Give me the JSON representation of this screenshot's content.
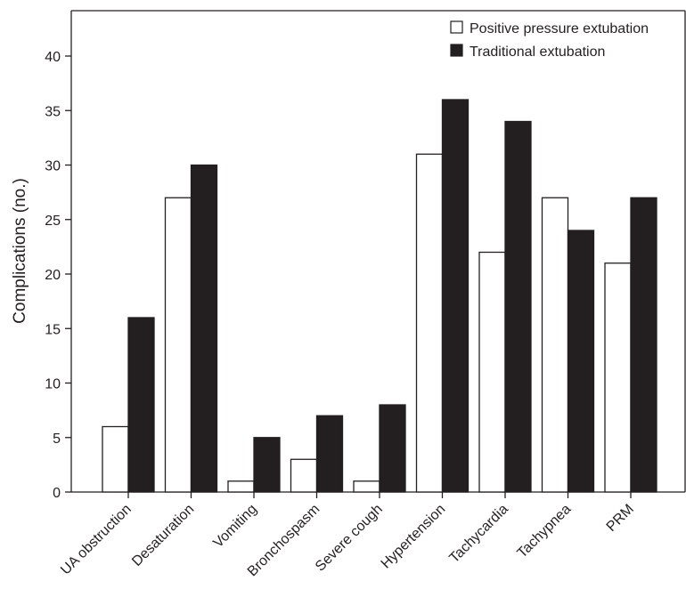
{
  "chart_data": {
    "type": "bar",
    "title": "",
    "xlabel": "",
    "ylabel": "Complications (no.)",
    "ylim": [
      0,
      45
    ],
    "yticks": [
      0,
      5,
      10,
      15,
      20,
      25,
      30,
      35,
      40
    ],
    "grid": false,
    "legend_position": "top-right",
    "categories": [
      "UA obstruction",
      "Desaturation",
      "Vomiting",
      "Bronchospasm",
      "Severe cough",
      "Hypertension",
      "Tachycardia",
      "Tachypnea",
      "PRM"
    ],
    "series": [
      {
        "name": "Positive pressure extubation",
        "color": "#ffffff",
        "values": [
          6,
          27,
          1,
          3,
          1,
          31,
          22,
          27,
          21
        ]
      },
      {
        "name": "Traditional extubation",
        "color": "#231f20",
        "values": [
          16,
          30,
          5,
          7,
          8,
          36,
          34,
          24,
          27
        ]
      }
    ]
  }
}
